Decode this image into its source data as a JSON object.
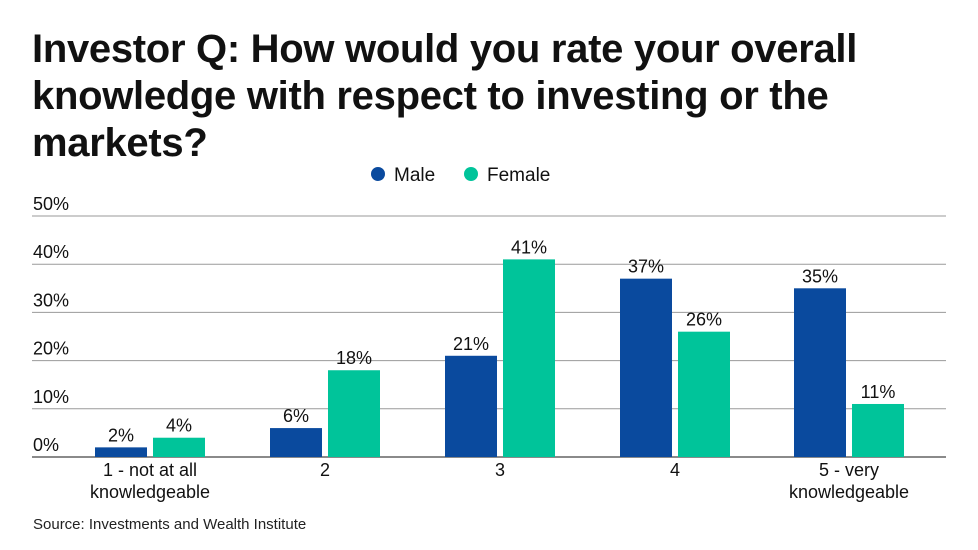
{
  "chart_data": {
    "type": "bar",
    "title": "Investor Q: How would you rate your overall knowledge with respect to investing or the markets?",
    "categories": [
      "1 - not at all knowledgeable",
      "2",
      "3",
      "4",
      "5 - very knowledgeable"
    ],
    "series": [
      {
        "name": "Male",
        "color": "#0a4a9e",
        "values": [
          2,
          6,
          21,
          37,
          35
        ],
        "labels": [
          "2%",
          "6%",
          "21%",
          "37%",
          "35%"
        ]
      },
      {
        "name": "Female",
        "color": "#00c49a",
        "values": [
          4,
          18,
          41,
          26,
          11
        ],
        "labels": [
          "4%",
          "18%",
          "41%",
          "26%",
          "11%"
        ]
      }
    ],
    "y_ticks": [
      "0%",
      "10%",
      "20%",
      "30%",
      "40%",
      "50%"
    ],
    "ylim": [
      0,
      50
    ],
    "grid": true,
    "legend": "top-center",
    "source": "Source: Investments and Wealth Institute"
  }
}
